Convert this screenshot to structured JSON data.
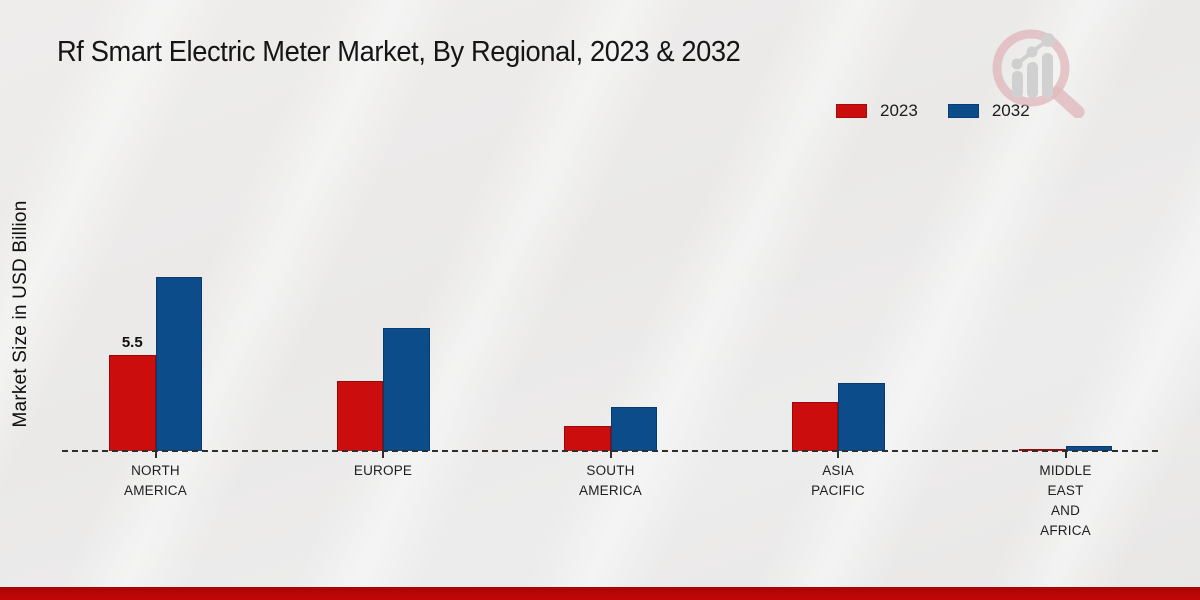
{
  "header": {
    "title": "Rf Smart Electric Meter Market, By Regional, 2023 & 2032"
  },
  "y_axis": {
    "label": "Market Size in USD Billion"
  },
  "watermark": {
    "icon": "magnifier-analytics-logo-icon",
    "circle_color": "#ddadb2",
    "glyph_color": "#c9c9c9"
  },
  "colors": {
    "series_2023": "#cc0d0d",
    "series_2023_border": "#9e0707",
    "series_2032": "#0d4c8b",
    "series_2032_border": "#093a6d",
    "footer_band": "#c50606",
    "background": "#eae9e8",
    "axis_line": "#2e2e2e",
    "text": "#1a1a1a"
  },
  "chart_data": {
    "type": "bar",
    "title": "Rf Smart Electric Meter Market, By Regional, 2023 & 2032",
    "xlabel": "",
    "ylabel": "Market Size in USD Billion",
    "categories": [
      "NORTH AMERICA",
      "EUROPE",
      "SOUTH AMERICA",
      "ASIA PACIFIC",
      "MIDDLE EAST AND AFRICA"
    ],
    "category_label_lines": [
      [
        "NORTH",
        "AMERICA"
      ],
      [
        "EUROPE"
      ],
      [
        "SOUTH",
        "AMERICA"
      ],
      [
        "ASIA",
        "PACIFIC"
      ],
      [
        "MIDDLE",
        "EAST",
        "AND",
        "AFRICA"
      ]
    ],
    "series": [
      {
        "name": "2023",
        "color": "#cc0d0d",
        "border": "#9e0707",
        "values": [
          5.5,
          4.0,
          1.4,
          2.8,
          0.1
        ]
      },
      {
        "name": "2032",
        "color": "#0d4c8b",
        "border": "#093a6d",
        "values": [
          9.9,
          7.0,
          2.5,
          3.9,
          0.3
        ]
      }
    ],
    "data_labels": [
      {
        "series_index": 0,
        "category_index": 0,
        "text": "5.5"
      }
    ],
    "ylim": [
      0,
      10.5
    ],
    "y_ticks_visible": false,
    "grid": false,
    "legend_position": "top-right",
    "baseline_style": "dashed"
  }
}
